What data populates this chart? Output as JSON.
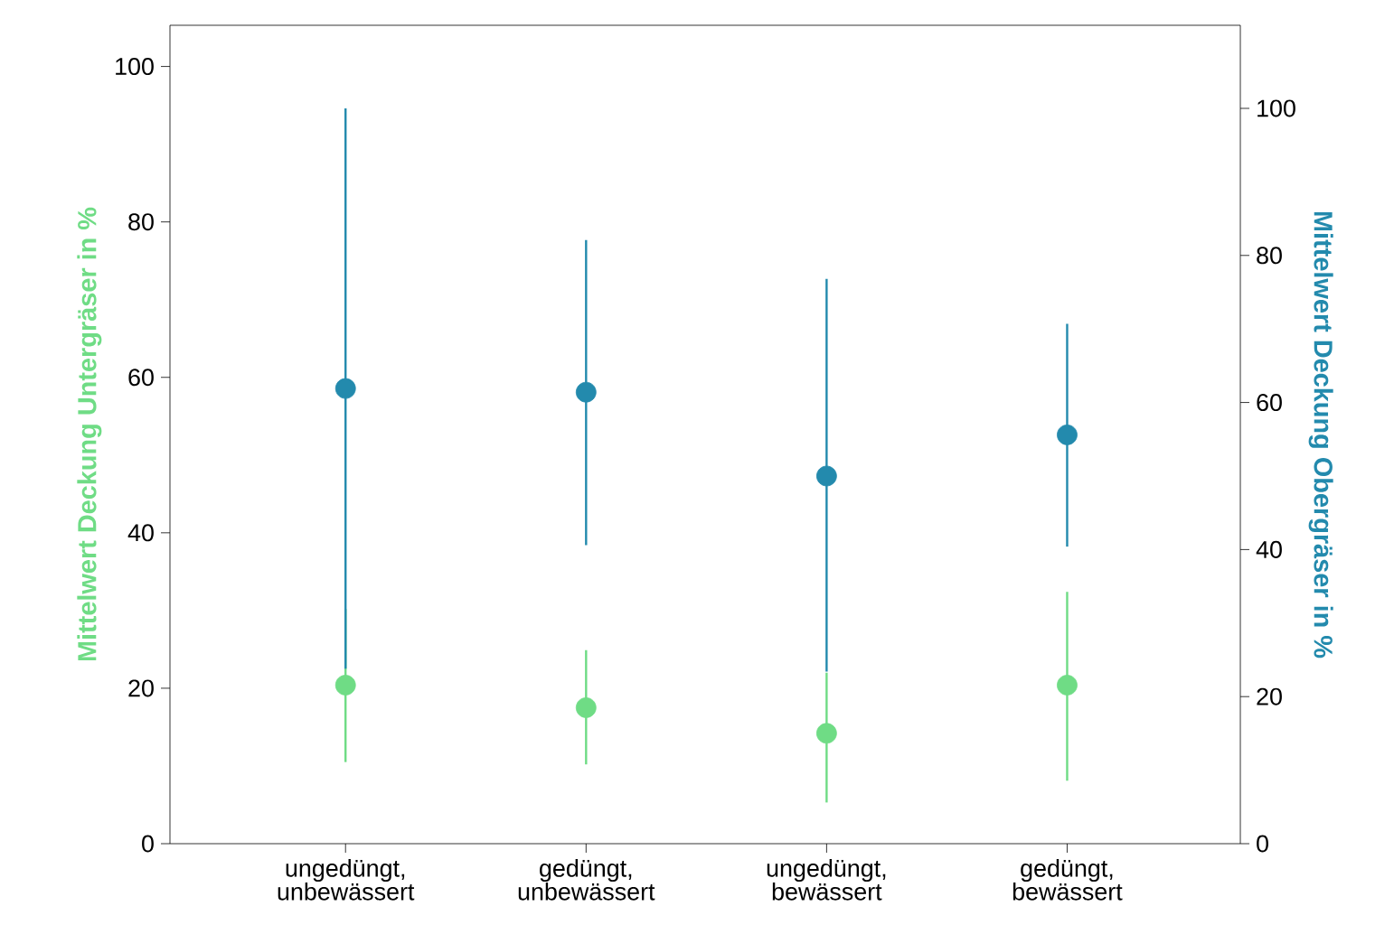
{
  "chart_data": {
    "type": "scatter",
    "marker": "circle",
    "ylabel": "Mittelwert Deckung Untergräser in %",
    "y2label": "Mittelwert Deckung Obergräser in %",
    "categories": [
      "ungedüngt, unbewässert",
      "gedüngt, unbewässert",
      "ungedüngt, bewässert",
      "gedüngt, bewässert"
    ],
    "ylim": [
      0,
      105.3
    ],
    "yticks": [
      0,
      20,
      40,
      60,
      80,
      100
    ],
    "y2lim": [
      0,
      111.3
    ],
    "y2ticks": [
      0,
      20,
      40,
      60,
      80,
      100
    ],
    "series": [
      {
        "color": "#6fdc85",
        "values": [
          20.4,
          17.5,
          14.2,
          20.4
        ],
        "errors": [
          [
            10.5,
            30.2
          ],
          [
            10.2,
            24.9
          ],
          [
            5.3,
            22.0
          ],
          [
            8.1,
            32.4
          ]
        ]
      },
      {
        "color": "#238aad",
        "axis": "y2",
        "values": [
          61.9,
          61.4,
          50.0,
          55.6
        ],
        "errors": [
          [
            23.8,
            100
          ],
          [
            40.6,
            82.1
          ],
          [
            23.4,
            76.8
          ],
          [
            40.4,
            70.7
          ]
        ]
      }
    ]
  }
}
